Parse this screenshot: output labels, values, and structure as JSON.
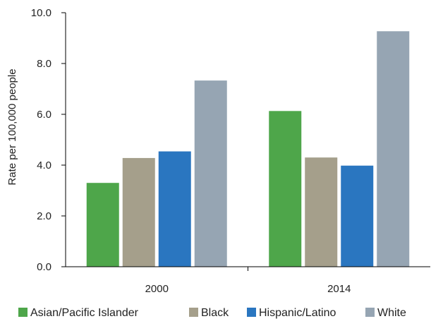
{
  "chart_data": {
    "type": "bar",
    "title": "",
    "xlabel": "",
    "ylabel": "Rate per 100,000 people",
    "categories": [
      "2000",
      "2014"
    ],
    "series": [
      {
        "name": "Asian/Pacific Islander",
        "color": "#4ea64a",
        "values": [
          3.3,
          6.13
        ]
      },
      {
        "name": "Black",
        "color": "#a59f8b",
        "values": [
          4.28,
          4.3
        ]
      },
      {
        "name": "Hispanic/Latino",
        "color": "#2a76c0",
        "values": [
          4.54,
          3.98
        ]
      },
      {
        "name": "White",
        "color": "#96a5b3",
        "values": [
          7.33,
          9.27
        ]
      }
    ],
    "ylim": [
      0,
      10
    ],
    "yticks": [
      0,
      2,
      4,
      6,
      8,
      10
    ],
    "ytick_labels": [
      "0.0",
      "2.0",
      "4.0",
      "6.0",
      "8.0",
      "10.0"
    ],
    "grid": false,
    "legend_position": "bottom"
  }
}
